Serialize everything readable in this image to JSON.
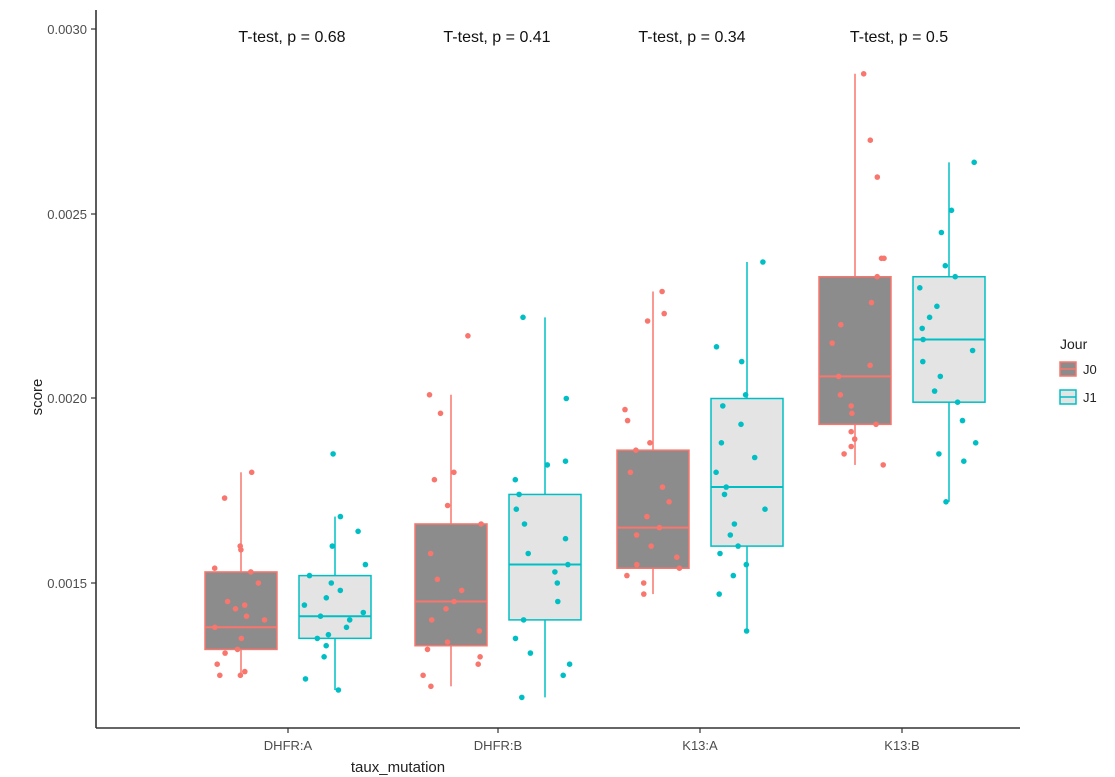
{
  "chart_data": {
    "type": "boxplot",
    "xlabel": "taux_mutation",
    "ylabel": "score",
    "ylim": [
      0.00105,
      0.00305
    ],
    "y_ticks": [
      "0.0015",
      "0.0020",
      "0.0025",
      "0.0030"
    ],
    "y_tick_values": [
      0.0015,
      0.002,
      0.0025,
      0.003
    ],
    "categories": [
      "DHFR:A",
      "DHFR:B",
      "K13:A",
      "K13:B"
    ],
    "grid": false,
    "legend": {
      "title": "Jour",
      "position": "right",
      "entries": [
        "J0",
        "J1"
      ]
    },
    "annotations": [
      "T-test, p = 0.68",
      "T-test, p = 0.41",
      "T-test, p = 0.34",
      "T-test, p = 0.5"
    ],
    "colors": {
      "J0_line": "#f8766d",
      "J1_line": "#00bfc4",
      "J0_fill": "#8c8c8c",
      "J1_fill": "#e4e4e4"
    },
    "series": [
      {
        "name": "J0",
        "boxes": [
          {
            "whisker_low": 0.00125,
            "q1": 0.00132,
            "median": 0.00138,
            "q3": 0.00153,
            "whisker_high": 0.0018
          },
          {
            "whisker_low": 0.00122,
            "q1": 0.00133,
            "median": 0.00145,
            "q3": 0.00166,
            "whisker_high": 0.00201
          },
          {
            "whisker_low": 0.00147,
            "q1": 0.00154,
            "median": 0.00165,
            "q3": 0.00186,
            "whisker_high": 0.00229
          },
          {
            "whisker_low": 0.00182,
            "q1": 0.00193,
            "median": 0.00206,
            "q3": 0.00233,
            "whisker_high": 0.00288
          }
        ],
        "points": [
          [
            0.00125,
            0.00126,
            0.00128,
            0.00131,
            0.00132,
            0.00135,
            0.00138,
            0.0014,
            0.00141,
            0.00143,
            0.00145,
            0.0015,
            0.00153,
            0.00154,
            0.00159,
            0.00173,
            0.0018,
            0.00125,
            0.00144,
            0.0016
          ],
          [
            0.00122,
            0.00125,
            0.00128,
            0.0013,
            0.00132,
            0.00134,
            0.00137,
            0.0014,
            0.00143,
            0.00145,
            0.00148,
            0.00151,
            0.00158,
            0.00166,
            0.00171,
            0.00178,
            0.0018,
            0.00196,
            0.00201,
            0.00217
          ],
          [
            0.00147,
            0.0015,
            0.00152,
            0.00154,
            0.00155,
            0.00157,
            0.0016,
            0.00163,
            0.00165,
            0.00168,
            0.00172,
            0.00176,
            0.0018,
            0.00186,
            0.00188,
            0.00194,
            0.00197,
            0.00221,
            0.00223,
            0.00229
          ],
          [
            0.00182,
            0.00185,
            0.00187,
            0.00189,
            0.00191,
            0.00193,
            0.00196,
            0.00198,
            0.00201,
            0.00206,
            0.00209,
            0.00215,
            0.0022,
            0.00226,
            0.00233,
            0.00238,
            0.00238,
            0.0026,
            0.0027,
            0.00288
          ]
        ]
      },
      {
        "name": "J1",
        "boxes": [
          {
            "whisker_low": 0.00121,
            "q1": 0.00135,
            "median": 0.00141,
            "q3": 0.00152,
            "whisker_high": 0.00168
          },
          {
            "whisker_low": 0.00119,
            "q1": 0.0014,
            "median": 0.00155,
            "q3": 0.00174,
            "whisker_high": 0.00222
          },
          {
            "whisker_low": 0.00137,
            "q1": 0.0016,
            "median": 0.00176,
            "q3": 0.002,
            "whisker_high": 0.00237
          },
          {
            "whisker_low": 0.00172,
            "q1": 0.00199,
            "median": 0.00216,
            "q3": 0.00233,
            "whisker_high": 0.00264
          }
        ],
        "points": [
          [
            0.00121,
            0.00124,
            0.0013,
            0.00133,
            0.00135,
            0.00136,
            0.00138,
            0.0014,
            0.00141,
            0.00142,
            0.00144,
            0.00146,
            0.00148,
            0.0015,
            0.00152,
            0.00155,
            0.0016,
            0.00164,
            0.00168,
            0.00185
          ],
          [
            0.00119,
            0.00125,
            0.00128,
            0.00131,
            0.00135,
            0.0014,
            0.00145,
            0.0015,
            0.00153,
            0.00155,
            0.00158,
            0.00162,
            0.00166,
            0.0017,
            0.00174,
            0.00178,
            0.00182,
            0.00183,
            0.002,
            0.00222
          ],
          [
            0.00137,
            0.00147,
            0.00152,
            0.00155,
            0.00158,
            0.0016,
            0.00163,
            0.00166,
            0.0017,
            0.00174,
            0.00176,
            0.0018,
            0.00184,
            0.00188,
            0.00193,
            0.00198,
            0.00201,
            0.0021,
            0.00214,
            0.00237
          ],
          [
            0.00172,
            0.00183,
            0.00185,
            0.00188,
            0.00194,
            0.00199,
            0.00202,
            0.00206,
            0.0021,
            0.00213,
            0.00216,
            0.00219,
            0.00222,
            0.00225,
            0.0023,
            0.00233,
            0.00236,
            0.00245,
            0.00251,
            0.00264
          ]
        ]
      }
    ]
  }
}
